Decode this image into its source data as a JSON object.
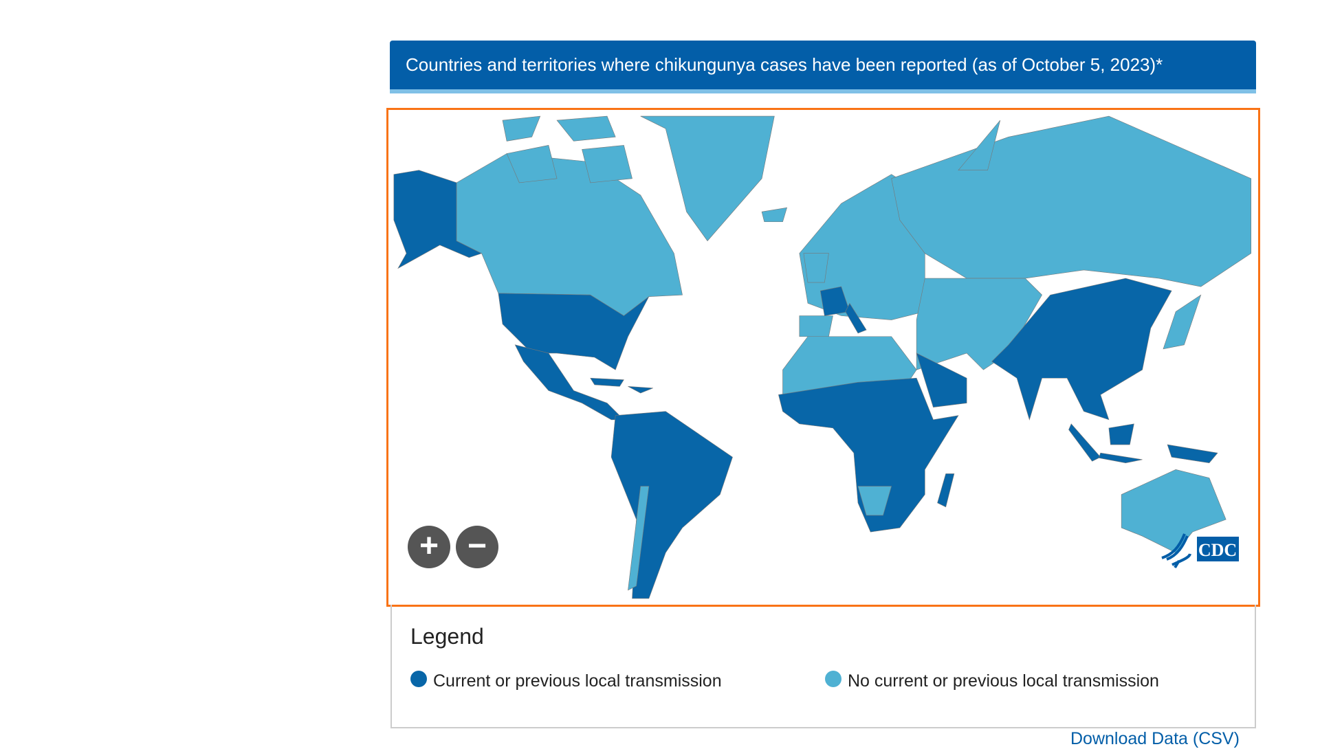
{
  "header": {
    "title": "Countries and territories where chikungunya cases have been reported (as of October 5, 2023)*"
  },
  "map": {
    "zoom_in_label": "+",
    "zoom_out_label": "−",
    "logo": "CDC",
    "colors": {
      "local": "#0866a8",
      "none": "#4fb1d3"
    },
    "regions": {
      "alaska": "local",
      "canada": "none",
      "greenland": "none",
      "usa": "local",
      "mexico_central_america": "local",
      "caribbean": "local",
      "south_america": "local",
      "chile": "none",
      "europe": "none",
      "france": "local",
      "italy": "local",
      "uk": "none",
      "iberia": "none",
      "russia": "none",
      "central_asia_middle_east": "none",
      "south_east_asia": "local",
      "arabia": "local",
      "north_africa": "none",
      "sub_saharan_africa": "local",
      "southern_africa_part": "none",
      "madagascar": "local",
      "indonesia": "local",
      "papua_new_guinea": "local",
      "australia": "none",
      "japan": "none"
    }
  },
  "legend": {
    "title": "Legend",
    "items": [
      {
        "label": "Current or previous local transmission",
        "color": "#0866a8"
      },
      {
        "label": "No current or previous local transmission",
        "color": "#4fb1d3"
      }
    ]
  },
  "download_label": "Download Data (CSV)"
}
